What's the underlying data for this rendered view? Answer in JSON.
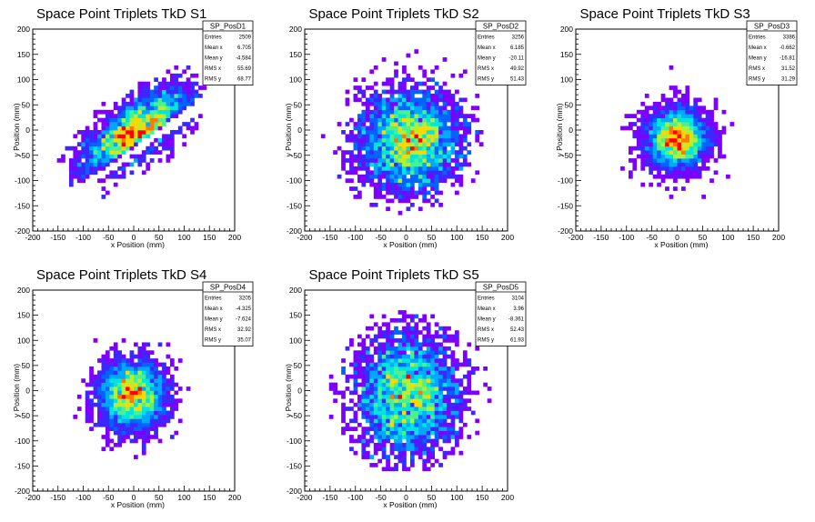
{
  "chart_data": [
    {
      "type": "heatmap",
      "hist_name": "SP_PosD1",
      "title": "Space Point Triplets TkD S1",
      "xlabel": "x Position (mm)",
      "ylabel": "y Position (mm)",
      "xlim": [
        -200,
        200
      ],
      "ylim": [
        -200,
        200
      ],
      "x_ticks": [
        "-200",
        "-150",
        "-100",
        "-50",
        "0",
        "50",
        "100",
        "150",
        "200"
      ],
      "y_ticks": [
        "200",
        "150",
        "100",
        "50",
        "0",
        "-50",
        "-100",
        "-150",
        "-200"
      ],
      "stats": [
        {
          "label": "Entries",
          "value": "2509"
        },
        {
          "label": "Mean x",
          "value": "6.705"
        },
        {
          "label": "Mean y",
          "value": "-4.584"
        },
        {
          "label": "RMS x",
          "value": "55.69"
        },
        {
          "label": "RMS y",
          "value": "68.77"
        }
      ],
      "distribution": {
        "shape": "split",
        "center_x": 5,
        "center_y": 0,
        "sigma_x": 55,
        "sigma_y": 68,
        "rotation_deg": 35,
        "gap_offset": -35,
        "gap_half_width": 10
      }
    },
    {
      "type": "heatmap",
      "hist_name": "SP_PosD2",
      "title": "Space Point Triplets TkD S2",
      "xlabel": "x Position (mm)",
      "ylabel": "y Position (mm)",
      "xlim": [
        -200,
        200
      ],
      "ylim": [
        -200,
        200
      ],
      "x_ticks": [
        "-200",
        "-150",
        "-100",
        "-50",
        "0",
        "50",
        "100",
        "150",
        "200"
      ],
      "y_ticks": [
        "200",
        "150",
        "100",
        "50",
        "0",
        "-50",
        "-100",
        "-150",
        "-200"
      ],
      "stats": [
        {
          "label": "Entries",
          "value": "3256"
        },
        {
          "label": "Mean x",
          "value": "6.185"
        },
        {
          "label": "Mean y",
          "value": "-20.11"
        },
        {
          "label": "RMS x",
          "value": "49.92"
        },
        {
          "label": "RMS y",
          "value": "51.43"
        }
      ],
      "distribution": {
        "shape": "gauss",
        "center_x": 6,
        "center_y": -20,
        "sigma_x": 50,
        "sigma_y": 51
      }
    },
    {
      "type": "heatmap",
      "hist_name": "SP_PosD3",
      "title": "Space Point Triplets TkD S3",
      "xlabel": "x Position (mm)",
      "ylabel": "y Position (mm)",
      "xlim": [
        -200,
        200
      ],
      "ylim": [
        -200,
        200
      ],
      "x_ticks": [
        "-200",
        "-150",
        "-100",
        "-50",
        "0",
        "50",
        "100",
        "150",
        "200"
      ],
      "y_ticks": [
        "200",
        "150",
        "100",
        "50",
        "0",
        "-50",
        "-100",
        "-150",
        "-200"
      ],
      "stats": [
        {
          "label": "Entries",
          "value": "3386"
        },
        {
          "label": "Mean x",
          "value": "-0.662"
        },
        {
          "label": "Mean y",
          "value": "-16.81"
        },
        {
          "label": "RMS x",
          "value": "31.52"
        },
        {
          "label": "RMS y",
          "value": "31.29"
        }
      ],
      "distribution": {
        "shape": "gauss",
        "center_x": -1,
        "center_y": -17,
        "sigma_x": 31,
        "sigma_y": 31
      }
    },
    {
      "type": "heatmap",
      "hist_name": "SP_PosD4",
      "title": "Space Point Triplets TkD S4",
      "xlabel": "x Position (mm)",
      "ylabel": "y Position (mm)",
      "xlim": [
        -200,
        200
      ],
      "ylim": [
        -200,
        200
      ],
      "x_ticks": [
        "-200",
        "-150",
        "-100",
        "-50",
        "0",
        "50",
        "100",
        "150",
        "200"
      ],
      "y_ticks": [
        "200",
        "150",
        "100",
        "50",
        "0",
        "-50",
        "-100",
        "-150",
        "-200"
      ],
      "stats": [
        {
          "label": "Entries",
          "value": "3205"
        },
        {
          "label": "Mean x",
          "value": "-4.325"
        },
        {
          "label": "Mean y",
          "value": "-7.624"
        },
        {
          "label": "RMS x",
          "value": "32.92"
        },
        {
          "label": "RMS y",
          "value": "35.07"
        }
      ],
      "distribution": {
        "shape": "gauss",
        "center_x": -4,
        "center_y": -8,
        "sigma_x": 33,
        "sigma_y": 35
      }
    },
    {
      "type": "heatmap",
      "hist_name": "SP_PosD5",
      "title": "Space Point Triplets TkD S5",
      "xlabel": "x Position (mm)",
      "ylabel": "y Position (mm)",
      "xlim": [
        -200,
        200
      ],
      "ylim": [
        -200,
        200
      ],
      "x_ticks": [
        "-200",
        "-150",
        "-100",
        "-50",
        "0",
        "50",
        "100",
        "150",
        "200"
      ],
      "y_ticks": [
        "200",
        "150",
        "100",
        "50",
        "0",
        "-50",
        "-100",
        "-150",
        "-200"
      ],
      "stats": [
        {
          "label": "Entries",
          "value": "3104"
        },
        {
          "label": "Mean x",
          "value": "3.96"
        },
        {
          "label": "Mean y",
          "value": "-8.361"
        },
        {
          "label": "RMS x",
          "value": "52.43"
        },
        {
          "label": "RMS y",
          "value": "61.93"
        }
      ],
      "distribution": {
        "shape": "gauss",
        "center_x": 4,
        "center_y": -8,
        "sigma_x": 52,
        "sigma_y": 62
      }
    }
  ],
  "colors": {
    "palette": [
      "#7d00ff",
      "#3c28ff",
      "#0064ff",
      "#00a8ff",
      "#00e6dc",
      "#4cf08c",
      "#b4f032",
      "#ffd700",
      "#ff7800",
      "#ff0000"
    ],
    "frame": "#000000",
    "background": "#ffffff"
  }
}
